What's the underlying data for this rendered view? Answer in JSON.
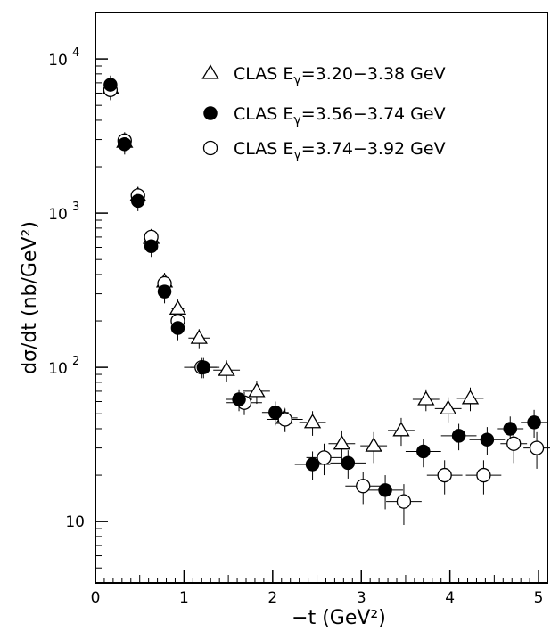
{
  "chart_data": {
    "type": "scatter",
    "xlabel": "−t  (GeV²)",
    "ylabel": "dσ/dt (nb/GeV²)",
    "xlim": [
      0,
      5.1
    ],
    "ylim": [
      4,
      20000
    ],
    "yscale": "log",
    "grid": false,
    "legend_position": "top-right",
    "x_ticks": [
      {
        "value": 0,
        "label": "0"
      },
      {
        "value": 1,
        "label": "1"
      },
      {
        "value": 2,
        "label": "2"
      },
      {
        "value": 3,
        "label": "3"
      },
      {
        "value": 4,
        "label": "4"
      },
      {
        "value": 5,
        "label": "5"
      }
    ],
    "y_ticks": [
      {
        "value": 10,
        "base": "10",
        "exp": ""
      },
      {
        "value": 100,
        "base": "10",
        "exp": "2"
      },
      {
        "value": 1000,
        "base": "10",
        "exp": "3"
      },
      {
        "value": 10000,
        "base": "10",
        "exp": "4"
      }
    ],
    "series": [
      {
        "name": "CLAS Eγ=3.20−3.38 GeV",
        "legend_prefix": "CLAS E",
        "legend_sub": "γ",
        "legend_suffix": "=3.20−3.38 GeV",
        "marker": "open-triangle",
        "points": [
          {
            "x": 0.17,
            "y": 6500,
            "xerr": 0.07,
            "yerr": 1000
          },
          {
            "x": 0.33,
            "y": 2900,
            "xerr": 0.07,
            "yerr": 400
          },
          {
            "x": 0.48,
            "y": 1300,
            "xerr": 0.07,
            "yerr": 180
          },
          {
            "x": 0.63,
            "y": 690,
            "xerr": 0.07,
            "yerr": 90
          },
          {
            "x": 0.78,
            "y": 360,
            "xerr": 0.07,
            "yerr": 50
          },
          {
            "x": 0.93,
            "y": 240,
            "xerr": 0.07,
            "yerr": 35
          },
          {
            "x": 1.17,
            "y": 155,
            "xerr": 0.12,
            "yerr": 22
          },
          {
            "x": 1.48,
            "y": 96,
            "xerr": 0.15,
            "yerr": 15
          },
          {
            "x": 1.82,
            "y": 70,
            "xerr": 0.15,
            "yerr": 12
          },
          {
            "x": 2.13,
            "y": 47,
            "xerr": 0.15,
            "yerr": 8
          },
          {
            "x": 2.45,
            "y": 44,
            "xerr": 0.15,
            "yerr": 8
          },
          {
            "x": 2.78,
            "y": 32,
            "xerr": 0.15,
            "yerr": 7
          },
          {
            "x": 3.14,
            "y": 31,
            "xerr": 0.15,
            "yerr": 7
          },
          {
            "x": 3.45,
            "y": 39,
            "xerr": 0.15,
            "yerr": 8
          },
          {
            "x": 3.73,
            "y": 62,
            "xerr": 0.15,
            "yerr": 10
          },
          {
            "x": 3.98,
            "y": 54,
            "xerr": 0.15,
            "yerr": 10
          },
          {
            "x": 4.23,
            "y": 63,
            "xerr": 0.15,
            "yerr": 11
          }
        ]
      },
      {
        "name": "CLAS Eγ=3.56−3.74 GeV",
        "legend_prefix": "CLAS E",
        "legend_sub": "γ",
        "legend_suffix": "=3.56−3.74 GeV",
        "marker": "filled-circle",
        "points": [
          {
            "x": 0.17,
            "y": 6800,
            "xerr": 0.07,
            "yerr": 1000
          },
          {
            "x": 0.33,
            "y": 2800,
            "xerr": 0.07,
            "yerr": 400
          },
          {
            "x": 0.48,
            "y": 1200,
            "xerr": 0.07,
            "yerr": 170
          },
          {
            "x": 0.63,
            "y": 610,
            "xerr": 0.07,
            "yerr": 90
          },
          {
            "x": 0.78,
            "y": 310,
            "xerr": 0.07,
            "yerr": 50
          },
          {
            "x": 0.93,
            "y": 180,
            "xerr": 0.07,
            "yerr": 30
          },
          {
            "x": 1.22,
            "y": 100,
            "xerr": 0.15,
            "yerr": 15
          },
          {
            "x": 1.62,
            "y": 62,
            "xerr": 0.15,
            "yerr": 10
          },
          {
            "x": 2.03,
            "y": 51,
            "xerr": 0.15,
            "yerr": 9
          },
          {
            "x": 2.45,
            "y": 23.5,
            "xerr": 0.2,
            "yerr": 5
          },
          {
            "x": 2.85,
            "y": 24,
            "xerr": 0.2,
            "yerr": 5
          },
          {
            "x": 3.27,
            "y": 16,
            "xerr": 0.2,
            "yerr": 4
          },
          {
            "x": 3.7,
            "y": 28.5,
            "xerr": 0.2,
            "yerr": 6
          },
          {
            "x": 4.1,
            "y": 36,
            "xerr": 0.2,
            "yerr": 7
          },
          {
            "x": 4.42,
            "y": 34,
            "xerr": 0.2,
            "yerr": 7
          },
          {
            "x": 4.68,
            "y": 40,
            "xerr": 0.15,
            "yerr": 8
          },
          {
            "x": 4.95,
            "y": 44,
            "xerr": 0.15,
            "yerr": 9
          }
        ]
      },
      {
        "name": "CLAS Eγ=3.74−3.92 GeV",
        "legend_prefix": "CLAS E",
        "legend_sub": "γ",
        "legend_suffix": "=3.74−3.92 GeV",
        "marker": "open-circle",
        "points": [
          {
            "x": 0.17,
            "y": 6300,
            "xerr": 0.07,
            "yerr": 900
          },
          {
            "x": 0.33,
            "y": 2950,
            "xerr": 0.07,
            "yerr": 400
          },
          {
            "x": 0.48,
            "y": 1300,
            "xerr": 0.07,
            "yerr": 180
          },
          {
            "x": 0.63,
            "y": 700,
            "xerr": 0.07,
            "yerr": 90
          },
          {
            "x": 0.78,
            "y": 350,
            "xerr": 0.07,
            "yerr": 50
          },
          {
            "x": 0.93,
            "y": 200,
            "xerr": 0.07,
            "yerr": 30
          },
          {
            "x": 1.2,
            "y": 100,
            "xerr": 0.2,
            "yerr": 15
          },
          {
            "x": 1.68,
            "y": 59,
            "xerr": 0.2,
            "yerr": 10
          },
          {
            "x": 2.14,
            "y": 46,
            "xerr": 0.2,
            "yerr": 8
          },
          {
            "x": 2.58,
            "y": 26,
            "xerr": 0.2,
            "yerr": 6
          },
          {
            "x": 3.02,
            "y": 17,
            "xerr": 0.2,
            "yerr": 4
          },
          {
            "x": 3.48,
            "y": 13.5,
            "xerr": 0.2,
            "yerr": 4
          },
          {
            "x": 3.94,
            "y": 20,
            "xerr": 0.2,
            "yerr": 5
          },
          {
            "x": 4.38,
            "y": 20,
            "xerr": 0.2,
            "yerr": 5
          },
          {
            "x": 4.72,
            "y": 32,
            "xerr": 0.15,
            "yerr": 8
          },
          {
            "x": 4.98,
            "y": 30,
            "xerr": 0.15,
            "yerr": 8
          }
        ]
      }
    ]
  }
}
